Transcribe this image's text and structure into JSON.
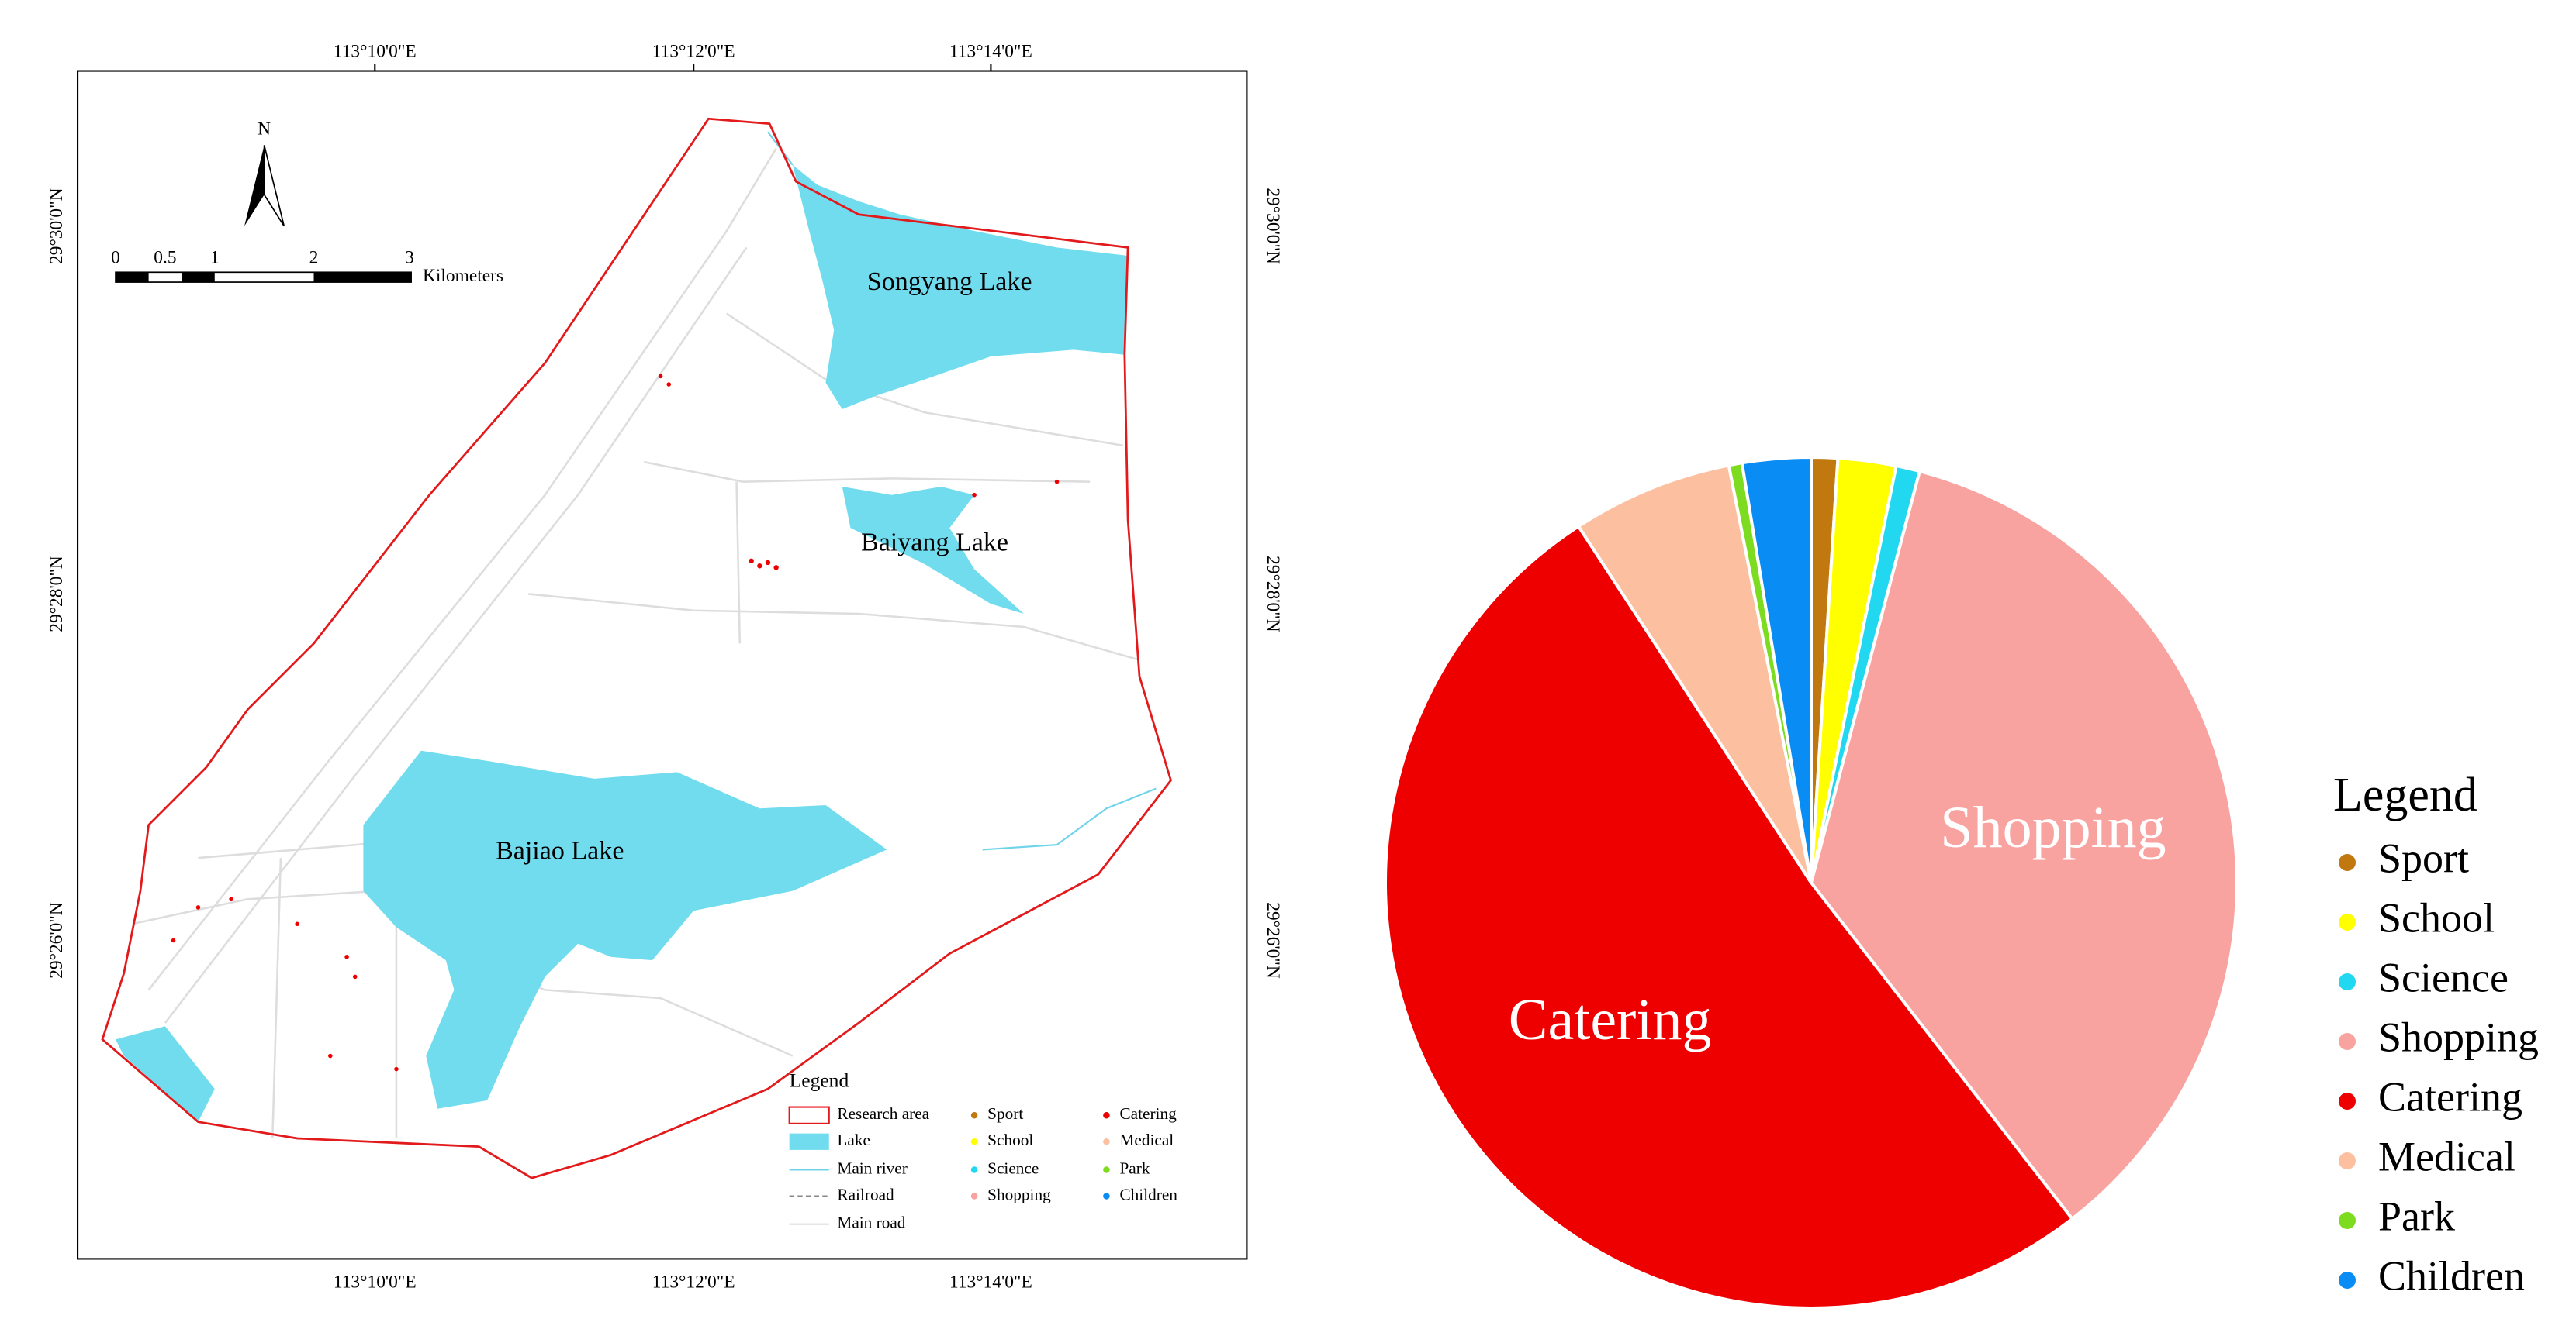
{
  "map": {
    "lon_labels": [
      "113°10'0\"E",
      "113°12'0\"E",
      "113°14'0\"E"
    ],
    "lat_labels": [
      "29°30'0\"N",
      "29°28'0\"N",
      "29°26'0\"N"
    ],
    "north": "N",
    "scale_labels": [
      "0",
      "0.5",
      "1",
      "2",
      "3"
    ],
    "scale_unit": "Kilometers",
    "lakes": [
      "Songyang Lake",
      "Baiyang Lake",
      "Bajiao Lake"
    ],
    "legend": {
      "title": "Legend",
      "features": [
        "Research area",
        "Lake",
        "Main river",
        "Railroad",
        "Main road"
      ],
      "poi": [
        "Sport",
        "School",
        "Science",
        "Shopping",
        "Catering",
        "Medical",
        "Park",
        "Children"
      ]
    }
  },
  "chart_data": {
    "type": "pie",
    "legend_title": "Legend",
    "legend": "right",
    "categories": [
      "Sport",
      "School",
      "Science",
      "Shopping",
      "Catering",
      "Medical",
      "Park",
      "Children"
    ],
    "values": [
      1.0,
      2.2,
      0.9,
      35.4,
      51.3,
      6.1,
      0.5,
      2.6
    ],
    "colors": [
      "#c0780f",
      "#ffff00",
      "#22d8f0",
      "#f9a3a0",
      "#ee0000",
      "#fcc0a0",
      "#7ddc1f",
      "#0a8cf5"
    ]
  }
}
